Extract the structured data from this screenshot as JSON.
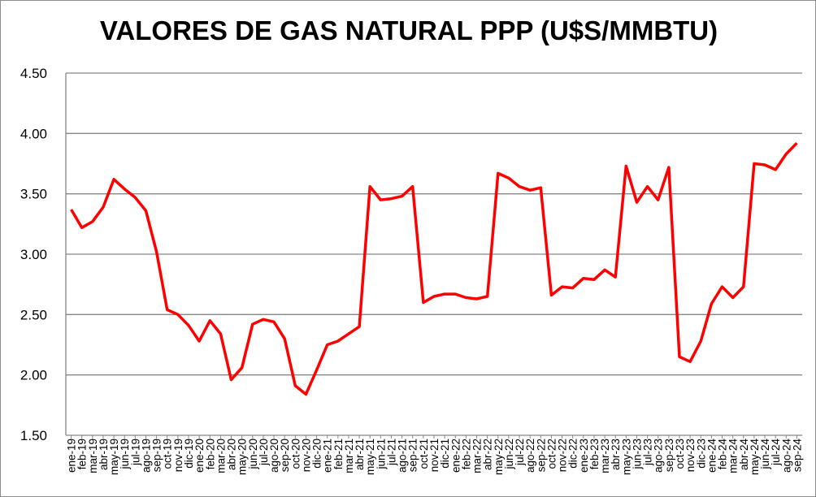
{
  "chart_data": {
    "type": "line",
    "title": "VALORES DE GAS NATURAL PPP (U$S/MMBTU)",
    "xlabel": "",
    "ylabel": "",
    "ylim": [
      1.5,
      4.5
    ],
    "yticks": [
      "1.50",
      "2.00",
      "2.50",
      "3.00",
      "3.50",
      "4.00",
      "4.50"
    ],
    "grid": true,
    "legend": "none",
    "line_color": "#ff0000",
    "categories": [
      "ene-19",
      "feb-19",
      "mar-19",
      "abr-19",
      "may-19",
      "jun-19",
      "jul-19",
      "ago-19",
      "sep-19",
      "oct-19",
      "nov-19",
      "dic-19",
      "ene-20",
      "feb-20",
      "mar-20",
      "abr-20",
      "may-20",
      "jun-20",
      "jul-20",
      "ago-20",
      "sep-20",
      "oct-20",
      "nov-20",
      "dic-20",
      "ene-21",
      "feb-21",
      "mar-21",
      "abr-21",
      "may-21",
      "jun-21",
      "jul-21",
      "ago-21",
      "sep-21",
      "oct-21",
      "nov-21",
      "dic-21",
      "ene-22",
      "feb-22",
      "mar-22",
      "abr-22",
      "may-22",
      "jun-22",
      "jul-22",
      "ago-22",
      "sep-22",
      "oct-22",
      "nov-22",
      "dic-22",
      "ene-23",
      "feb-23",
      "mar-23",
      "abr-23",
      "may-23",
      "jun-23",
      "jul-23",
      "ago-23",
      "sep-23",
      "oct-23",
      "nov-23",
      "dic-23",
      "ene-24",
      "feb-24",
      "mar-24",
      "abr-24",
      "may-24",
      "jun-24",
      "jul-24",
      "ago-24",
      "sep-24"
    ],
    "series": [
      {
        "name": "PPP",
        "values": [
          3.37,
          3.22,
          3.27,
          3.39,
          3.62,
          3.54,
          3.47,
          3.36,
          3.02,
          2.54,
          2.5,
          2.41,
          2.28,
          2.45,
          2.34,
          1.96,
          2.06,
          2.42,
          2.46,
          2.44,
          2.3,
          1.91,
          1.84,
          2.04,
          2.25,
          2.28,
          2.34,
          2.4,
          3.56,
          3.45,
          3.46,
          3.48,
          3.56,
          2.6,
          2.65,
          2.67,
          2.67,
          2.64,
          2.63,
          2.65,
          3.67,
          3.63,
          3.56,
          3.53,
          3.55,
          2.66,
          2.73,
          2.72,
          2.8,
          2.79,
          2.87,
          2.81,
          3.73,
          3.43,
          3.56,
          3.45,
          3.72,
          2.15,
          2.11,
          2.28,
          2.59,
          2.73,
          2.64,
          2.73,
          3.75,
          3.74,
          3.7,
          3.83,
          3.92
        ]
      }
    ]
  }
}
